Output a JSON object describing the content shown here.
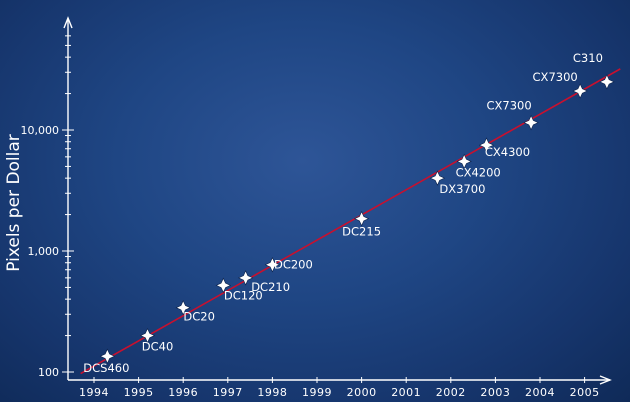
{
  "chart_data": {
    "type": "scatter",
    "title": "",
    "xlabel": "",
    "ylabel": "Pixels per Dollar",
    "y_scale": "log",
    "ylim": [
      100,
      40000
    ],
    "xlim": [
      1993.7,
      2005.8
    ],
    "grid": false,
    "legend": "none",
    "y_ticks": [
      {
        "value": 100,
        "label": "100"
      },
      {
        "value": 1000,
        "label": "1,000"
      },
      {
        "value": 10000,
        "label": "10,000"
      }
    ],
    "x_ticks": [
      "1994",
      "1995",
      "1996",
      "1997",
      "1998",
      "1999",
      "2000",
      "2001",
      "2002",
      "2003",
      "2004",
      "2005"
    ],
    "points": [
      {
        "label": "DCS460",
        "x": 1994.3,
        "y": 135
      },
      {
        "label": "DC40",
        "x": 1995.2,
        "y": 200
      },
      {
        "label": "DC20",
        "x": 1996.0,
        "y": 340
      },
      {
        "label": "DC120",
        "x": 1996.9,
        "y": 520
      },
      {
        "label": "DC210",
        "x": 1997.4,
        "y": 600
      },
      {
        "label": "DC200",
        "x": 1998.0,
        "y": 770
      },
      {
        "label": "DC215",
        "x": 2000.0,
        "y": 1850
      },
      {
        "label": "DX3700",
        "x": 2001.7,
        "y": 4000
      },
      {
        "label": "CX4200",
        "x": 2002.3,
        "y": 5500
      },
      {
        "label": "CX4300",
        "x": 2002.8,
        "y": 7500
      },
      {
        "label": "CX7300",
        "x": 2003.8,
        "y": 11500
      },
      {
        "label": "CX7300",
        "x": 2004.9,
        "y": 21000
      },
      {
        "label": "C310",
        "x": 2005.5,
        "y": 25000
      }
    ],
    "trendline": {
      "points": [
        {
          "x": 1993.7,
          "y": 97
        },
        {
          "x": 2005.8,
          "y": 32000
        }
      ],
      "color": "#c8102e"
    },
    "colors": {
      "trend": "#c8102e",
      "axis": "#ffffff",
      "marker": "#ffffff",
      "text": "#ffffff"
    }
  }
}
